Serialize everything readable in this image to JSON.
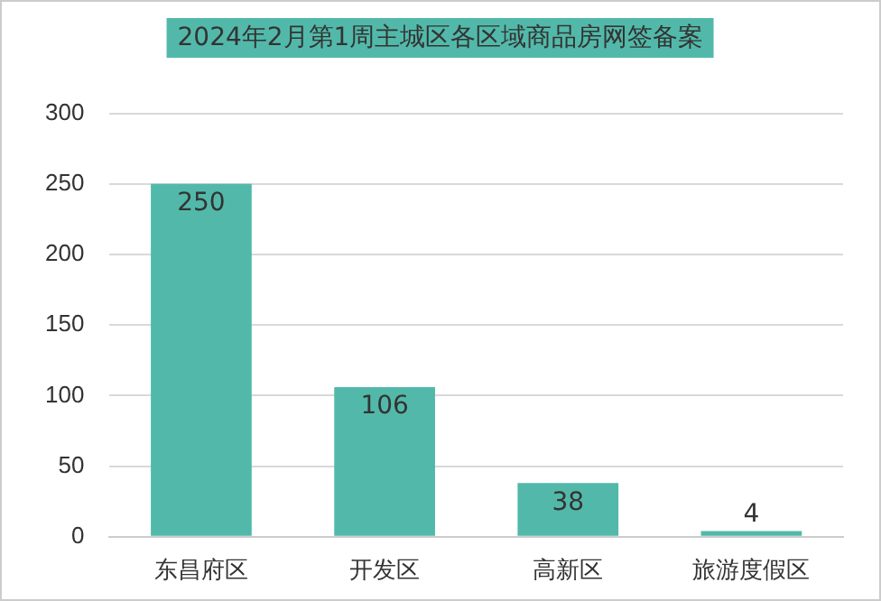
{
  "chart_data": {
    "type": "bar",
    "title": "2024年2月第1周主城区各区域商品房网签备案",
    "categories": [
      "东昌府区",
      "开发区",
      "高新区",
      "旅游度假区"
    ],
    "values": [
      250,
      106,
      38,
      4
    ],
    "color": "#52b9aa",
    "ylim": [
      0,
      300
    ],
    "yticks": [
      0,
      50,
      100,
      150,
      200,
      250,
      300
    ],
    "grid": "y",
    "data_labels": true,
    "legend": false
  }
}
